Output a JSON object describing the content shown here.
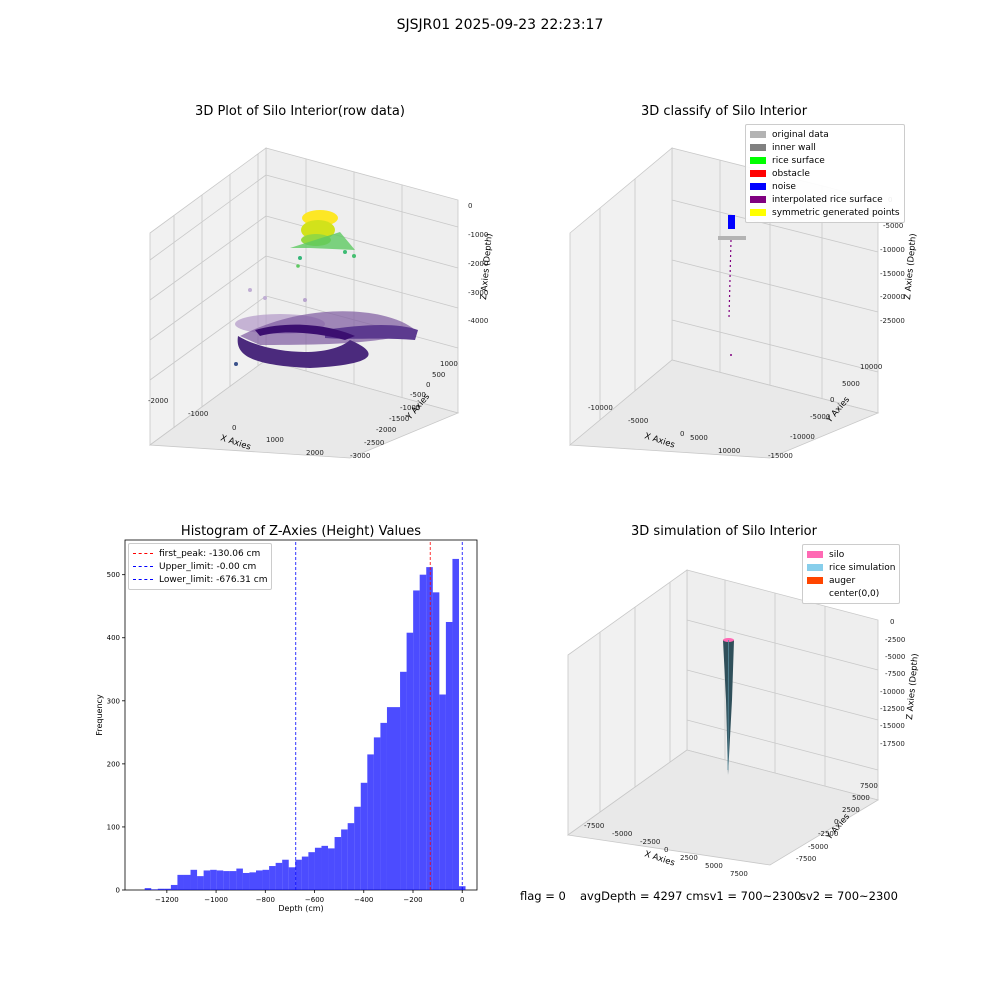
{
  "figure": {
    "suptitle": "SJSJR01 2025-09-23 22:23:17"
  },
  "panel1": {
    "title": "3D Plot of Silo Interior(row data)",
    "xlabel": "X Axies",
    "ylabel": "Y Axies",
    "zlabel": "Z Axies (Depth)",
    "xticks": [
      "-2000",
      "-1000",
      "0",
      "1000",
      "2000"
    ],
    "yticks": [
      "1000",
      "500",
      "0",
      "-500",
      "-1000",
      "-1500",
      "-2000",
      "-2500",
      "-3000"
    ],
    "zticks": [
      "0",
      "-1000",
      "-2000",
      "-3000",
      "-4000"
    ],
    "colormap": "viridis"
  },
  "panel2": {
    "title": "3D classify of Silo Interior",
    "xlabel": "X Axies",
    "ylabel": "Y Axies",
    "zlabel": "Z Axies (Depth)",
    "xticks": [
      "-10000",
      "-5000",
      "0",
      "5000",
      "10000"
    ],
    "yticks": [
      "10000",
      "5000",
      "0",
      "-5000",
      "-10000",
      "-15000"
    ],
    "zticks": [
      "0",
      "-5000",
      "-10000",
      "-15000",
      "-20000",
      "-25000"
    ],
    "legend": [
      {
        "label": "original data",
        "color": "#b3b3b3"
      },
      {
        "label": "inner wall",
        "color": "#808080"
      },
      {
        "label": "rice surface",
        "color": "#00ff00"
      },
      {
        "label": "obstacle",
        "color": "#ff0000"
      },
      {
        "label": "noise",
        "color": "#0000ff"
      },
      {
        "label": "interpolated rice surface",
        "color": "#800080"
      },
      {
        "label": "symmetric generated points",
        "color": "#ffff00"
      }
    ]
  },
  "panel4": {
    "title": "3D simulation of Silo Interior",
    "xlabel": "X Axies",
    "ylabel": "Y Axies",
    "zlabel": "Z Axies (Depth)",
    "xticks": [
      "-7500",
      "-5000",
      "-2500",
      "0",
      "2500",
      "5000",
      "7500"
    ],
    "yticks": [
      "7500",
      "5000",
      "2500",
      "0",
      "-2500",
      "-5000",
      "-7500"
    ],
    "zticks": [
      "0",
      "-2500",
      "-5000",
      "-7500",
      "-10000",
      "-12500",
      "-15000",
      "-17500"
    ],
    "legend": [
      {
        "label": "silo",
        "color": "#ff69b4"
      },
      {
        "label": "rice simulation",
        "color": "#87ceeb"
      },
      {
        "label": "auger",
        "color": "#ff4500"
      },
      {
        "label": "center(0,0)",
        "color": "#ffffff"
      }
    ]
  },
  "status": {
    "flag": "flag = 0",
    "avg_sv1": "avgDepth = 4297 cmsv1 = 700~2300",
    "sv2": "sv2 = 700~2300"
  },
  "chart_data": [
    {
      "type": "bar",
      "title": "Histogram of Z-Axies (Height) Values",
      "xlabel": "Depth (cm)",
      "ylabel": "Frequency",
      "xlim": [
        -1370,
        60
      ],
      "ylim": [
        0,
        555
      ],
      "xticks": [
        -1200,
        -1000,
        -800,
        -600,
        -400,
        -200,
        0
      ],
      "yticks": [
        0,
        100,
        200,
        300,
        400,
        500
      ],
      "bin_width": 26.6,
      "bar_color": "#0000ff",
      "bin_starts": [
        -1290,
        -1263.4,
        -1236.8,
        -1210.2,
        -1183.6,
        -1157,
        -1130.4,
        -1103.8,
        -1077.2,
        -1050.6,
        -1024,
        -997.4,
        -970.8,
        -944.2,
        -917.6,
        -891,
        -864.4,
        -837.8,
        -811.2,
        -784.6,
        -758,
        -731.4,
        -704.8,
        -678.2,
        -651.6,
        -625,
        -598.4,
        -571.8,
        -545.2,
        -518.6,
        -492,
        -465.4,
        -438.8,
        -412.2,
        -385.6,
        -359,
        -332.4,
        -305.8,
        -279.2,
        -252.6,
        -226,
        -199.4,
        -172.8,
        -146.2,
        -119.6,
        -93,
        -66.4,
        -39.8,
        -13.2
      ],
      "values": [
        3,
        1,
        2,
        2,
        8,
        24,
        24,
        32,
        22,
        31,
        32,
        31,
        30,
        30,
        34,
        27,
        28,
        31,
        32,
        38,
        43,
        48,
        36,
        48,
        53,
        60,
        67,
        70,
        66,
        84,
        96,
        106,
        132,
        170,
        215,
        242,
        265,
        290,
        290,
        346,
        408,
        475,
        500,
        512,
        472,
        310,
        425,
        525,
        6
      ],
      "lines": [
        {
          "name": "first_peak: -130.06 cm",
          "x": -130.06,
          "color": "#ff0000"
        },
        {
          "name": "Upper_limit: -0.00 cm",
          "x": 0,
          "color": "#0000ff"
        },
        {
          "name": "Lower_limit: -676.31 cm",
          "x": -676.31,
          "color": "#0000ff"
        }
      ],
      "legend_position": "upper left"
    }
  ]
}
